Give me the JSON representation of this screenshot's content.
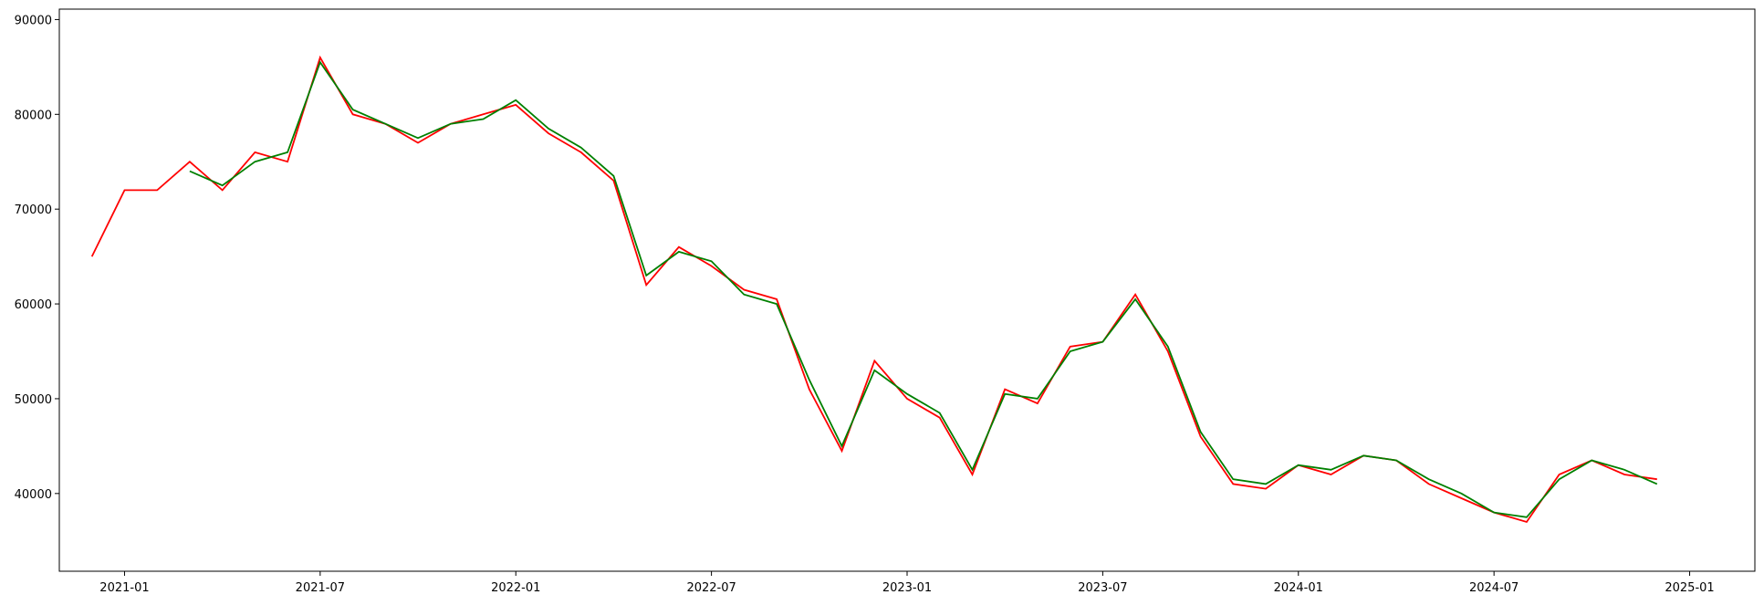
{
  "chart_data": {
    "type": "line",
    "x": [
      "2020-12",
      "2021-01",
      "2021-02",
      "2021-03",
      "2021-04",
      "2021-05",
      "2021-06",
      "2021-07",
      "2021-08",
      "2021-09",
      "2021-10",
      "2021-11",
      "2021-12",
      "2022-01",
      "2022-02",
      "2022-03",
      "2022-04",
      "2022-05",
      "2022-06",
      "2022-07",
      "2022-08",
      "2022-09",
      "2022-10",
      "2022-11",
      "2022-12",
      "2023-01",
      "2023-02",
      "2023-03",
      "2023-04",
      "2023-05",
      "2023-06",
      "2023-07",
      "2023-08",
      "2023-09",
      "2023-10",
      "2023-11",
      "2023-12",
      "2024-01",
      "2024-02",
      "2024-03",
      "2024-04",
      "2024-05",
      "2024-06",
      "2024-07",
      "2024-08",
      "2024-09",
      "2024-10",
      "2024-11",
      "2024-12"
    ],
    "series": [
      {
        "color": "#ff0000",
        "values": [
          65000,
          72000,
          72000,
          75000,
          72000,
          76000,
          75000,
          86000,
          80000,
          79000,
          77000,
          79000,
          80000,
          81000,
          78000,
          76000,
          73000,
          62000,
          66000,
          64000,
          61500,
          60500,
          51000,
          44500,
          54000,
          50000,
          48000,
          42000,
          51000,
          49500,
          55500,
          56000,
          61000,
          55000,
          46000,
          41000,
          40500,
          43000,
          42000,
          44000,
          43500,
          41000,
          39500,
          38000,
          37000,
          42000,
          43500,
          42000,
          41500
        ]
      },
      {
        "color": "#008000",
        "values": [
          null,
          null,
          null,
          74000,
          72500,
          75000,
          76000,
          85500,
          80500,
          79000,
          77500,
          79000,
          79500,
          81500,
          78500,
          76500,
          73500,
          63000,
          65500,
          64500,
          61000,
          60000,
          52000,
          45000,
          53000,
          50500,
          48500,
          42500,
          50500,
          50000,
          55000,
          56000,
          60500,
          55500,
          46500,
          41500,
          41000,
          43000,
          42500,
          44000,
          43500,
          41500,
          40000,
          38000,
          37500,
          41500,
          43500,
          42500,
          41000
        ]
      }
    ],
    "xlim": [
      "2020-11",
      "2025-03"
    ],
    "xticks": [
      "2021-01",
      "2021-07",
      "2022-01",
      "2022-07",
      "2023-01",
      "2023-07",
      "2024-01",
      "2024-07",
      "2025-01"
    ],
    "ylim": [
      31800,
      91100
    ],
    "yticks": [
      40000,
      50000,
      60000,
      70000,
      80000,
      90000
    ]
  }
}
